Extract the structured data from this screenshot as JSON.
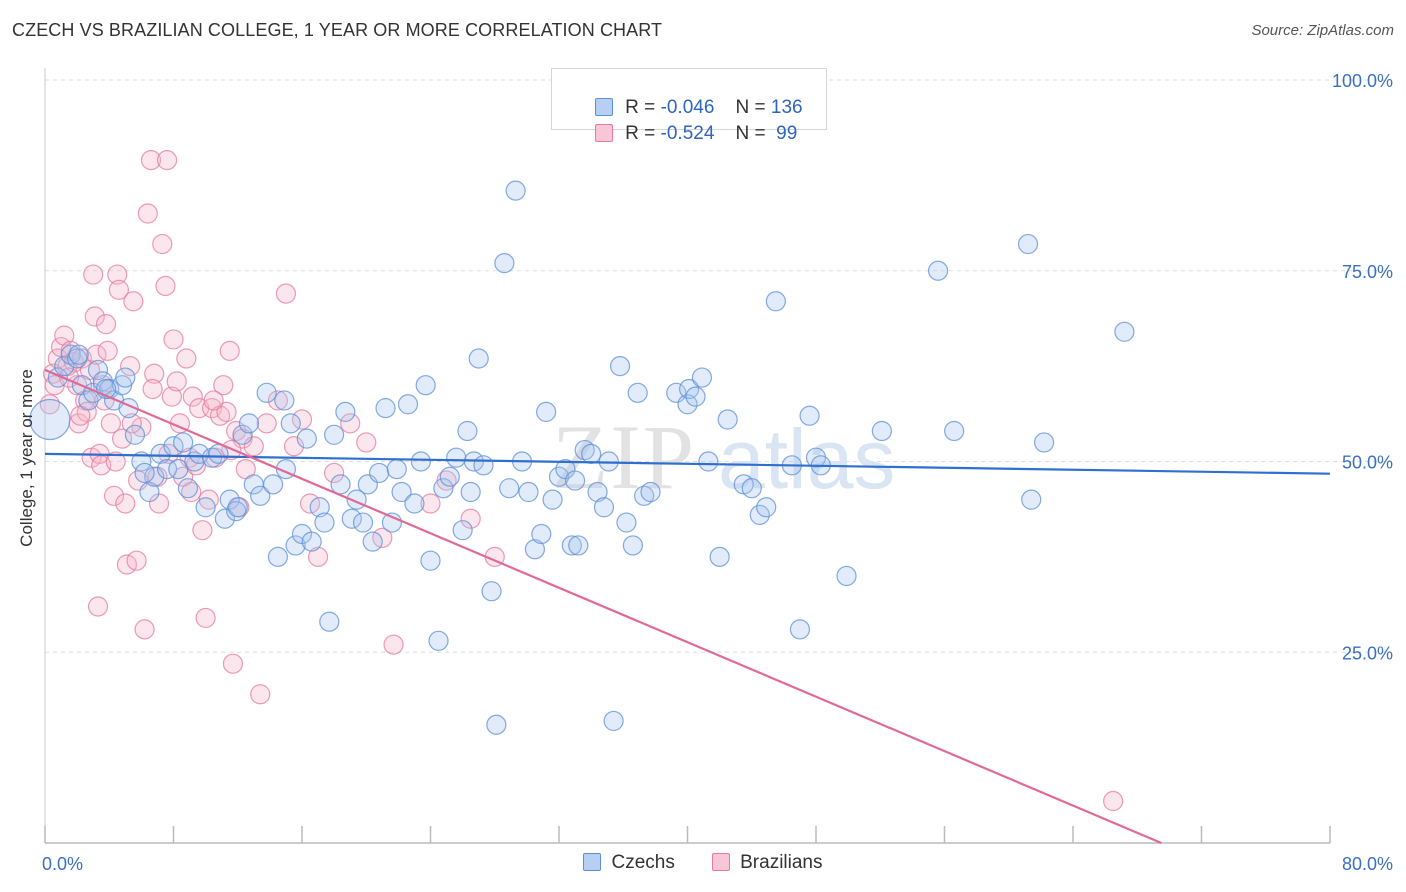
{
  "header": {
    "title": "CZECH VS BRAZILIAN COLLEGE, 1 YEAR OR MORE CORRELATION CHART",
    "source": "Source: ZipAtlas.com"
  },
  "legend": {
    "czech": {
      "r_label": "R =",
      "r_value": "-0.046",
      "n_label": "N =",
      "n_value": "136"
    },
    "brazil": {
      "r_label": "R =",
      "r_value": "-0.524",
      "n_label": "N =",
      "n_value": " 99"
    }
  },
  "colors": {
    "czech_fill": "#a9c6ef",
    "czech_stroke": "#5b8fd8",
    "czech_line": "#2f6fcf",
    "brazil_fill": "#f5b8cb",
    "brazil_stroke": "#e6799d",
    "brazil_line": "#e06a96",
    "tick_label": "#3b6fc4",
    "grid": "#dddddd"
  },
  "chart_data": {
    "type": "scatter",
    "title": "CZECH VS BRAZILIAN COLLEGE, 1 YEAR OR MORE CORRELATION CHART",
    "xlabel": "",
    "ylabel": "College, 1 year or more",
    "xlim": [
      0,
      80
    ],
    "ylim": [
      0,
      105
    ],
    "x_tick_labels": [
      "0.0%",
      "80.0%"
    ],
    "y_ticks": [
      25,
      50,
      75,
      100
    ],
    "y_tick_labels": [
      "25.0%",
      "50.0%",
      "75.0%",
      "100.0%"
    ],
    "grid": true,
    "legend_placement": "top-center",
    "series": [
      {
        "name": "Czechs",
        "r": -0.046,
        "n": 136,
        "trend": {
          "x": [
            0,
            80
          ],
          "y": [
            51.0,
            48.4
          ]
        },
        "points": [
          [
            0.3,
            55.5
          ],
          [
            0.8,
            61
          ],
          [
            1.2,
            62.5
          ],
          [
            1.6,
            64
          ],
          [
            2.0,
            63.5
          ],
          [
            2.3,
            60
          ],
          [
            2.7,
            58
          ],
          [
            3.0,
            59
          ],
          [
            3.3,
            62
          ],
          [
            3.6,
            60.5
          ],
          [
            4.0,
            59.5
          ],
          [
            4.3,
            58
          ],
          [
            4.8,
            60
          ],
          [
            5.2,
            57
          ],
          [
            5.6,
            53.5
          ],
          [
            6.0,
            50
          ],
          [
            6.5,
            46
          ],
          [
            6.8,
            48
          ],
          [
            7.2,
            51
          ],
          [
            7.6,
            49
          ],
          [
            8.0,
            52
          ],
          [
            8.3,
            49
          ],
          [
            8.6,
            52.5
          ],
          [
            8.9,
            46.5
          ],
          [
            9.3,
            50
          ],
          [
            9.6,
            51
          ],
          [
            10.0,
            44
          ],
          [
            10.4,
            50.5
          ],
          [
            10.8,
            51
          ],
          [
            11.2,
            42.5
          ],
          [
            11.5,
            45
          ],
          [
            11.9,
            43.5
          ],
          [
            12.3,
            53.5
          ],
          [
            12.7,
            55
          ],
          [
            13.0,
            47
          ],
          [
            13.4,
            45.5
          ],
          [
            13.8,
            59
          ],
          [
            14.2,
            47
          ],
          [
            14.5,
            37.5
          ],
          [
            14.9,
            58
          ],
          [
            15.3,
            55
          ],
          [
            15.6,
            39
          ],
          [
            16.0,
            40.5
          ],
          [
            16.3,
            53
          ],
          [
            16.6,
            39.5
          ],
          [
            17.1,
            44
          ],
          [
            17.4,
            42
          ],
          [
            17.7,
            29
          ],
          [
            18.0,
            53.5
          ],
          [
            18.4,
            47
          ],
          [
            18.7,
            56.5
          ],
          [
            19.1,
            42.5
          ],
          [
            19.4,
            45
          ],
          [
            19.8,
            42
          ],
          [
            20.1,
            47
          ],
          [
            20.4,
            39.5
          ],
          [
            20.8,
            48.5
          ],
          [
            21.2,
            57
          ],
          [
            21.6,
            42
          ],
          [
            21.9,
            49
          ],
          [
            22.2,
            46
          ],
          [
            22.6,
            57.5
          ],
          [
            23.0,
            44.5
          ],
          [
            23.4,
            50
          ],
          [
            23.7,
            60
          ],
          [
            24.0,
            37
          ],
          [
            24.5,
            26.5
          ],
          [
            24.8,
            46.5
          ],
          [
            25.2,
            48
          ],
          [
            25.6,
            50.5
          ],
          [
            26.0,
            41
          ],
          [
            26.3,
            54
          ],
          [
            26.7,
            50
          ],
          [
            27.0,
            63.5
          ],
          [
            27.3,
            49.5
          ],
          [
            27.8,
            33
          ],
          [
            28.1,
            15.5
          ],
          [
            28.6,
            76
          ],
          [
            28.9,
            46.5
          ],
          [
            29.3,
            85.5
          ],
          [
            29.7,
            50
          ],
          [
            30.1,
            46
          ],
          [
            30.5,
            38.5
          ],
          [
            30.9,
            40.5
          ],
          [
            31.2,
            56.5
          ],
          [
            31.6,
            45
          ],
          [
            32.0,
            48
          ],
          [
            32.4,
            49
          ],
          [
            32.8,
            39
          ],
          [
            33.2,
            39
          ],
          [
            33.6,
            51.5
          ],
          [
            34.0,
            51
          ],
          [
            34.4,
            46
          ],
          [
            34.8,
            44
          ],
          [
            35.1,
            50
          ],
          [
            35.4,
            16
          ],
          [
            35.8,
            62.5
          ],
          [
            36.2,
            42
          ],
          [
            36.6,
            39
          ],
          [
            36.9,
            59
          ],
          [
            37.3,
            45.5
          ],
          [
            37.7,
            46
          ],
          [
            39.3,
            59
          ],
          [
            40.0,
            57.5
          ],
          [
            40.1,
            59.5
          ],
          [
            40.5,
            58.5
          ],
          [
            40.9,
            61
          ],
          [
            41.3,
            50
          ],
          [
            42.0,
            37.5
          ],
          [
            42.5,
            55.5
          ],
          [
            43.5,
            47
          ],
          [
            44.0,
            46.5
          ],
          [
            44.5,
            43
          ],
          [
            44.9,
            44
          ],
          [
            45.5,
            71
          ],
          [
            46.5,
            49.5
          ],
          [
            47,
            28
          ],
          [
            47.6,
            56
          ],
          [
            48.0,
            50.5
          ],
          [
            48.3,
            49.5
          ],
          [
            49.9,
            35
          ],
          [
            52.1,
            54
          ],
          [
            55.6,
            75
          ],
          [
            56.6,
            54
          ],
          [
            61.2,
            78.5
          ],
          [
            61.4,
            45
          ],
          [
            62.2,
            52.5
          ],
          [
            67.2,
            67
          ],
          [
            3.8,
            59.5
          ],
          [
            2.1,
            64
          ],
          [
            5.0,
            61
          ],
          [
            6.2,
            48.5
          ],
          [
            12.0,
            44
          ],
          [
            15.0,
            49
          ],
          [
            26.5,
            46
          ],
          [
            33.0,
            47.5
          ]
        ]
      },
      {
        "name": "Brazilians",
        "r": -0.524,
        "n": 99,
        "trend": {
          "x": [
            0,
            69.5
          ],
          "y": [
            62.0,
            0
          ]
        },
        "points": [
          [
            0.3,
            57.5
          ],
          [
            0.5,
            61.5
          ],
          [
            0.8,
            63.5
          ],
          [
            1.0,
            65
          ],
          [
            1.2,
            66.5
          ],
          [
            1.4,
            62.5
          ],
          [
            1.6,
            64.5
          ],
          [
            1.8,
            63
          ],
          [
            2.0,
            60
          ],
          [
            2.1,
            55
          ],
          [
            2.3,
            63.5
          ],
          [
            2.5,
            58
          ],
          [
            2.6,
            56.5
          ],
          [
            2.8,
            62
          ],
          [
            2.9,
            50.5
          ],
          [
            3.0,
            74.5
          ],
          [
            3.1,
            69
          ],
          [
            3.2,
            64
          ],
          [
            3.3,
            31
          ],
          [
            3.4,
            51
          ],
          [
            3.5,
            49.5
          ],
          [
            3.6,
            60
          ],
          [
            3.8,
            68
          ],
          [
            3.9,
            64.5
          ],
          [
            4.1,
            55
          ],
          [
            4.3,
            45.5
          ],
          [
            4.5,
            74.5
          ],
          [
            4.6,
            72.5
          ],
          [
            4.8,
            53
          ],
          [
            5.0,
            44.5
          ],
          [
            5.1,
            36.5
          ],
          [
            5.3,
            62.5
          ],
          [
            5.5,
            71
          ],
          [
            5.7,
            37
          ],
          [
            5.8,
            47.5
          ],
          [
            6.0,
            54.5
          ],
          [
            6.2,
            28
          ],
          [
            6.4,
            82.5
          ],
          [
            6.6,
            89.5
          ],
          [
            6.8,
            61.5
          ],
          [
            7.0,
            48
          ],
          [
            7.1,
            44.5
          ],
          [
            7.3,
            78.5
          ],
          [
            7.5,
            73
          ],
          [
            7.6,
            89.5
          ],
          [
            7.9,
            58.5
          ],
          [
            8.0,
            66
          ],
          [
            8.2,
            60.5
          ],
          [
            8.4,
            55
          ],
          [
            8.6,
            48
          ],
          [
            8.8,
            63.5
          ],
          [
            9.0,
            50.5
          ],
          [
            9.2,
            58.5
          ],
          [
            9.4,
            49.5
          ],
          [
            9.6,
            57
          ],
          [
            9.8,
            41
          ],
          [
            10.0,
            29.5
          ],
          [
            10.2,
            45
          ],
          [
            10.4,
            57
          ],
          [
            10.6,
            50.5
          ],
          [
            10.9,
            56
          ],
          [
            11.1,
            60
          ],
          [
            11.3,
            56.5
          ],
          [
            11.5,
            64.5
          ],
          [
            11.7,
            23.5
          ],
          [
            11.9,
            54
          ],
          [
            12.1,
            44
          ],
          [
            12.3,
            53
          ],
          [
            12.5,
            49
          ],
          [
            13.0,
            52
          ],
          [
            13.4,
            19.5
          ],
          [
            13.8,
            55
          ],
          [
            14.5,
            58
          ],
          [
            15.0,
            72
          ],
          [
            15.5,
            52
          ],
          [
            16.0,
            55.5
          ],
          [
            16.5,
            44.5
          ],
          [
            17.0,
            37.5
          ],
          [
            18.0,
            48.5
          ],
          [
            19.0,
            55
          ],
          [
            20.0,
            52.5
          ],
          [
            21.0,
            40
          ],
          [
            21.7,
            26
          ],
          [
            24.0,
            44.5
          ],
          [
            25.0,
            47.5
          ],
          [
            26.5,
            42.5
          ],
          [
            28.0,
            37.5
          ],
          [
            66.5,
            5.5
          ],
          [
            0.6,
            60
          ],
          [
            1.5,
            61
          ],
          [
            2.2,
            56
          ],
          [
            3.7,
            58
          ],
          [
            4.4,
            50
          ],
          [
            5.4,
            55
          ],
          [
            6.7,
            59.5
          ],
          [
            7.7,
            51
          ],
          [
            9.1,
            46
          ],
          [
            10.5,
            58
          ],
          [
            11.6,
            51.5
          ]
        ]
      }
    ]
  }
}
